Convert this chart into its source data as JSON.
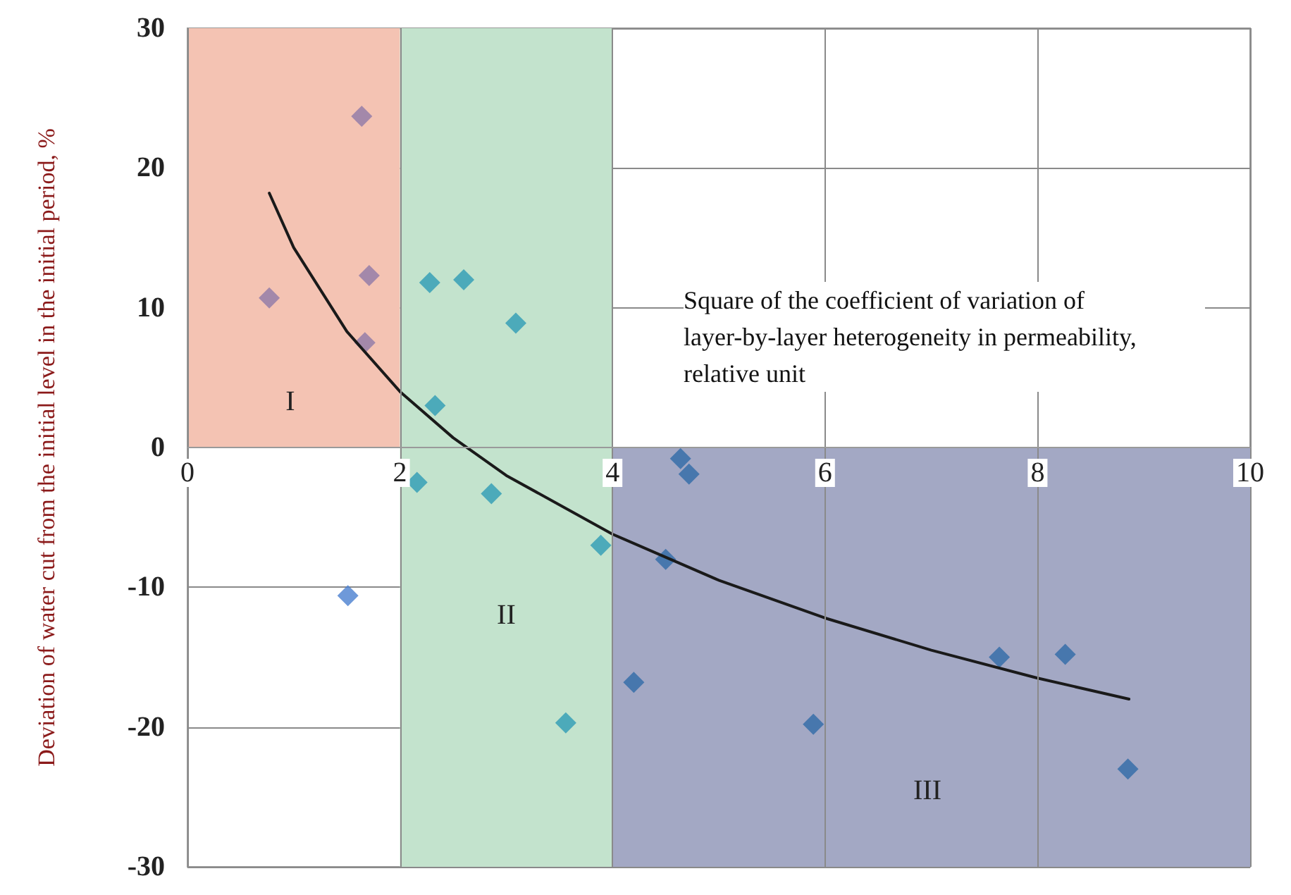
{
  "chart_data": {
    "type": "scatter",
    "xlabel": "Square of the coefficient of variation of layer-by-layer heterogeneity in permeability, relative unit",
    "ylabel": "Deviation of water cut from the initial level in the initial period, %",
    "xlim": [
      0,
      10
    ],
    "xticks": [
      0,
      2,
      4,
      6,
      8,
      10
    ],
    "ylim": [
      -30,
      30
    ],
    "yticks": [
      -30,
      -20,
      -10,
      0,
      10,
      20,
      30
    ],
    "grid": true,
    "marker": "diamond",
    "annotations": [
      "I",
      "III"
    ],
    "bands": [
      {
        "axis": "x",
        "from": 2,
        "to": 4,
        "label": "II",
        "color": "#c3e3cd"
      }
    ],
    "series": [
      {
        "type": "area",
        "color": "#f4c3b3",
        "marker": "none",
        "x": [
          0,
          2
        ],
        "values": [
          30,
          30
        ]
      },
      {
        "type": "area",
        "color": "#a3a8c4",
        "marker": "none",
        "x": [
          4,
          10
        ],
        "values": [
          -30,
          -30
        ]
      },
      {
        "color": "#8e79a8",
        "x": [
          0.77,
          1.64,
          1.71,
          1.67
        ],
        "values": [
          10.7,
          23.7,
          12.3,
          7.5
        ]
      },
      {
        "color": "#2e9bb5",
        "x": [
          2.28,
          2.6,
          3.09,
          2.33,
          2.16,
          2.86,
          3.89,
          3.56
        ],
        "values": [
          11.8,
          12.0,
          8.9,
          3.0,
          -2.5,
          -3.3,
          -7.0,
          -19.7
        ]
      },
      {
        "color": "#4a80cf",
        "x": [
          1.51
        ],
        "values": [
          -10.6
        ]
      },
      {
        "color": "#2f6aa8",
        "x": [
          4.64,
          4.72,
          4.5,
          4.2,
          5.89,
          7.64,
          8.26,
          8.85
        ],
        "values": [
          -0.8,
          -1.9,
          -8.0,
          -16.8,
          -19.8,
          -15.0,
          -14.8,
          -23.0
        ]
      },
      {
        "type": "line",
        "color": "#1a1a1a",
        "marker": "none",
        "line_style": "solid",
        "x": [
          0.77,
          1,
          1.5,
          2,
          2.5,
          3,
          4,
          5,
          6,
          7,
          8,
          8.86
        ],
        "values": [
          18.2,
          14.3,
          8.3,
          4.0,
          0.7,
          -2.0,
          -6.2,
          -9.5,
          -12.2,
          -14.5,
          -16.5,
          -18.0
        ]
      }
    ]
  }
}
